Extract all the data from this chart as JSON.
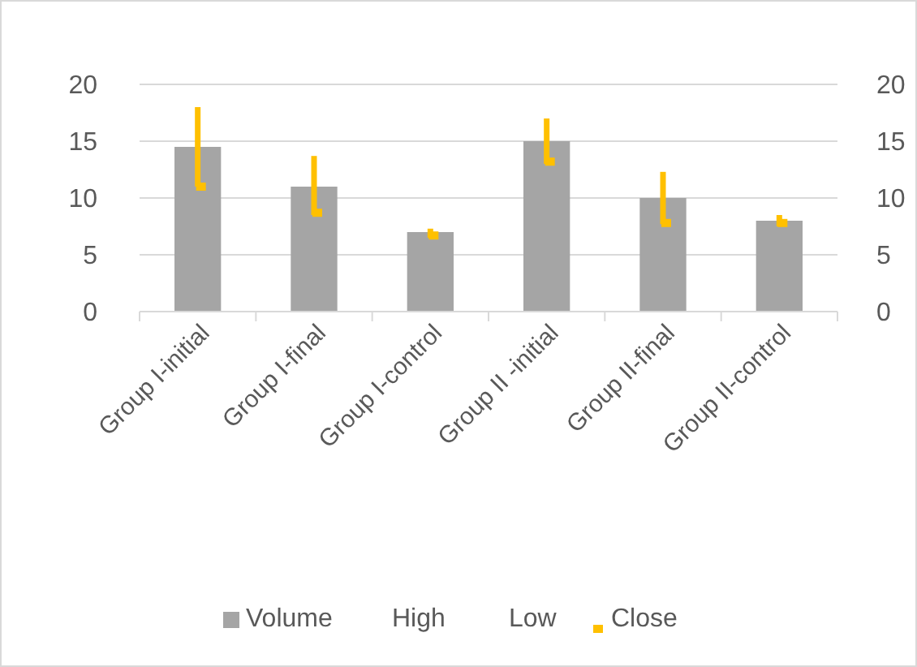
{
  "chart_data": {
    "type": "bar",
    "categories": [
      "Group I-initial",
      "Group I-final",
      "Group I-control",
      "Group II -initial",
      "Group II-final",
      "Group II-control"
    ],
    "series": [
      {
        "name": "Volume",
        "color": "#a5a5a5",
        "values": [
          14.5,
          11,
          7,
          15,
          10,
          8
        ]
      },
      {
        "name": "Close",
        "type": "scatter",
        "axis": "y2",
        "color": "#ffc000",
        "marker": "square",
        "values": [
          11,
          8.7,
          6.7,
          13.2,
          7.8,
          7.8
        ],
        "errors": [
          [
            11,
            18
          ],
          [
            8.5,
            13.7
          ],
          [
            6.5,
            7.3
          ],
          [
            13,
            17
          ],
          [
            7.7,
            12.3
          ],
          [
            7.5,
            8.5
          ]
        ]
      }
    ],
    "annotations": [
      "High",
      "Low"
    ],
    "ylim": [
      0,
      20
    ],
    "yticks": [
      0,
      5,
      10,
      15,
      20
    ],
    "y2lim": [
      0,
      20
    ],
    "y2ticks": [
      0,
      5,
      10,
      15,
      20
    ],
    "grid": "y",
    "legend": "bottom"
  }
}
